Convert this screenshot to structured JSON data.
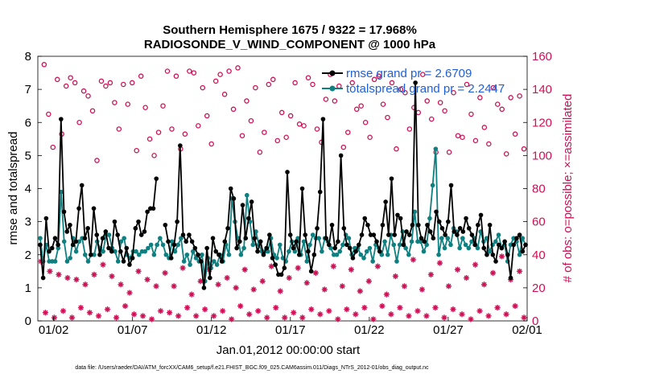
{
  "chart_data": {
    "type": "line",
    "title": "Southern Hemisphere 1675 / 9322 = 17.968%",
    "subtitle": "RADIOSONDE_V_WIND_COMPONENT @ 1000 hPa",
    "xlabel": "Jan.01,2012 00:00:00 start",
    "ylabel": "rmse and totalspread",
    "y2label": "# of obs: o=possible; ×=assimilated",
    "xlim": [
      0,
      31
    ],
    "ylim": [
      0,
      8
    ],
    "y2lim": [
      0,
      160
    ],
    "x_ticks": [
      {
        "x": 1,
        "label": "01/02"
      },
      {
        "x": 6,
        "label": "01/07"
      },
      {
        "x": 11,
        "label": "01/12"
      },
      {
        "x": 16,
        "label": "01/17"
      },
      {
        "x": 21,
        "label": "01/22"
      },
      {
        "x": 26,
        "label": "01/27"
      },
      {
        "x": 31,
        "label": "02/01"
      }
    ],
    "y_ticks": [
      "0",
      "1",
      "2",
      "3",
      "4",
      "5",
      "6",
      "7",
      "8"
    ],
    "y2_ticks": [
      "0",
      "20",
      "40",
      "60",
      "80",
      "100",
      "120",
      "140",
      "160"
    ],
    "legend": [
      {
        "label": "rmse grand pr = 2.6709",
        "color": "#000000"
      },
      {
        "label": "totalspread grand pr = 2.2447",
        "color": "#0f7f7f"
      }
    ],
    "legend_position": "top-right",
    "footnote": "data file: /Users/raeder/DAI/ATM_forcXX/CAM6_setup/f.e21.FHIST_BGC.f09_025.CAM6assim.011/Diags_NTrS_2012-01/obs_diag_output.nc",
    "colors": {
      "rmse": "#000000",
      "spread": "#0f7f7f",
      "obs": "#cc1155"
    },
    "series": [
      {
        "name": "rmse",
        "values": [
          2.3,
          1.3,
          3.1,
          2.1,
          2.2,
          2.5,
          2.3,
          6.1,
          3.3,
          2.7,
          2.9,
          2.3,
          2.4,
          3.4,
          4.1,
          2.5,
          2.8,
          2.0,
          3.4,
          2.6,
          2.0,
          2.5,
          2.7,
          2.2,
          2.1,
          3.0,
          2.6,
          2.1,
          1.8,
          2.2,
          1.7,
          1.9,
          2.8,
          3.0,
          2.6,
          2.7,
          3.3,
          3.4,
          3.4,
          4.3,
          null,
          null,
          2.9,
          2.4,
          1.9,
          2.3,
          3.0,
          5.3,
          2.6,
          2.4,
          2.6,
          2.4,
          2.2,
          2.0,
          1.8,
          1.0,
          2.2,
          1.3,
          2.5,
          2.1,
          2.0,
          1.8,
          2.4,
          2.8,
          4.0,
          3.7,
          2.2,
          2.4,
          3.5,
          2.5,
          3.1,
          3.6,
          2.5,
          2.1,
          2.4,
          2.0,
          2.2,
          2.6,
          1.9,
          1.7,
          1.4,
          1.4,
          1.6,
          4.5,
          2.6,
          2.2,
          2.4,
          2.0,
          4.0,
          2.6,
          2.1,
          1.5,
          2.0,
          2.8,
          3.9,
          6.1,
          2.5,
          2.3,
          2.9,
          2.2,
          2.4,
          5.0,
          2.8,
          2.3,
          2.2,
          1.9,
          2.1,
          2.3,
          2.6,
          3.1,
          2.9,
          2.6,
          2.6,
          2.4,
          2.1,
          2.9,
          3.6,
          2.6,
          4.3,
          2.6,
          3.2,
          3.1,
          2.3,
          2.7,
          2.6,
          2.9,
          7.2,
          2.9,
          2.5,
          2.4,
          2.9,
          2.7,
          2.5,
          3.3,
          3.0,
          2.8,
          2.6,
          3.0,
          4.1,
          2.7,
          2.6,
          2.8,
          2.7,
          3.1,
          2.8,
          2.6,
          2.3,
          2.9,
          3.2,
          2.2,
          2.0,
          2.9,
          2.0,
          1.8,
          2.3,
          2.2,
          2.4,
          2.0,
          1.3,
          2.3,
          2.5,
          2.6,
          2.1,
          2.3
        ]
      },
      {
        "name": "totalspread",
        "values": [
          2.5,
          1.8,
          2.3,
          1.8,
          1.8,
          1.8,
          2.2,
          3.9,
          2.4,
          1.8,
          1.9,
          2.5,
          2.1,
          2.4,
          2.5,
          2.0,
          1.8,
          2.0,
          2.0,
          2.4,
          2.2,
          2.1,
          2.6,
          2.6,
          2.2,
          2.1,
          1.8,
          2.4,
          2.5,
          2.0,
          1.9,
          2.1,
          2.1,
          2.0,
          2.1,
          2.1,
          2.2,
          2.3,
          2.0,
          2.3,
          2.5,
          2.3,
          2.0,
          1.9,
          2.4,
          2.1,
          2.3,
          2.5,
          1.8,
          2.0,
          1.7,
          2.1,
          1.9,
          1.8,
          2.0,
          1.2,
          1.9,
          1.6,
          1.8,
          1.7,
          2.0,
          1.8,
          2.3,
          2.0,
          3.7,
          3.0,
          2.5,
          2.0,
          2.2,
          3.8,
          3.0,
          2.3,
          2.7,
          2.3,
          2.1,
          2.1,
          2.1,
          2.5,
          2.0,
          1.9,
          2.3,
          1.9,
          1.8,
          2.1,
          2.4,
          2.1,
          2.5,
          2.0,
          2.4,
          1.8,
          2.3,
          2.6,
          2.5,
          2.5,
          2.1,
          2.5,
          2.4,
          2.2,
          2.0,
          2.0,
          2.1,
          2.3,
          2.6,
          2.5,
          2.0,
          2.2,
          2.2,
          2.0,
          1.9,
          2.1,
          2.2,
          1.8,
          2.3,
          2.2,
          2.0,
          2.4,
          2.0,
          2.6,
          2.3,
          1.8,
          2.3,
          2.7,
          2.2,
          2.0,
          2.4,
          3.3,
          2.4,
          2.4,
          2.1,
          2.3,
          3.1,
          4.1,
          5.2,
          2.0,
          2.5,
          2.2,
          2.5,
          2.3,
          2.8,
          2.7,
          2.2,
          2.5,
          2.3,
          2.2,
          2.4,
          2.5,
          2.2,
          2.7,
          2.4,
          2.5,
          2.1,
          2.3,
          2.4,
          2.6,
          2.2,
          2.3,
          1.8,
          2.3,
          2.5,
          2.4,
          2.0,
          2.5,
          2.3
        ]
      },
      {
        "name": "obs_possible",
        "values": [
          155,
          125,
          105,
          146,
          113,
          142,
          147,
          144,
          120,
          139,
          136,
          127,
          97,
          145,
          142,
          144,
          132,
          116,
          143,
          131,
          144,
          103,
          148,
          129,
          110,
          100,
          114,
          130,
          151,
          116,
          148,
          104,
          113,
          151,
          150,
          118,
          141,
          124,
          107,
          145,
          149,
          137,
          151,
          128,
          153,
          112,
          133,
          121,
          141,
          102,
          114,
          143,
          146,
          109,
          126,
          111,
          124,
          144,
          119,
          118,
          147,
          143,
          116,
          108,
          134,
          149,
          133,
          142,
          105,
          114,
          144,
          128,
          130,
          120,
          111,
          146,
          148,
          131,
          123,
          144,
          104,
          140,
          138,
          116,
          129,
          126,
          149,
          133,
          122,
          102,
          132,
          127,
          102,
          138,
          112,
          111,
          143,
          125,
          109,
          135,
          117,
          107,
          141,
          131,
          128,
          101,
          135,
          113,
          136,
          104
        ]
      },
      {
        "name": "obs_assimilated",
        "values": [
          36,
          5,
          30,
          2,
          28,
          6,
          26,
          2,
          25,
          8,
          22,
          5,
          28,
          3,
          34,
          7,
          27,
          2,
          22,
          9,
          17,
          4,
          30,
          3,
          25,
          1,
          21,
          6,
          29,
          5,
          21,
          3,
          32,
          8,
          16,
          3,
          24,
          7,
          31,
          3,
          22,
          6,
          26,
          1,
          20,
          9,
          31,
          4,
          19,
          6,
          24,
          2,
          33,
          8,
          18,
          2,
          26,
          5,
          32,
          2,
          23,
          7,
          29,
          4,
          19,
          6,
          33,
          1,
          21,
          7,
          31,
          4,
          18,
          8,
          24,
          1,
          33,
          9,
          16,
          4,
          27,
          8,
          21,
          3,
          37,
          6,
          19,
          3,
          28,
          8,
          35,
          2,
          21,
          7,
          31,
          4,
          26,
          1,
          34,
          6,
          22,
          3,
          29,
          8,
          39,
          4,
          25,
          9,
          30,
          2
        ]
      }
    ]
  }
}
